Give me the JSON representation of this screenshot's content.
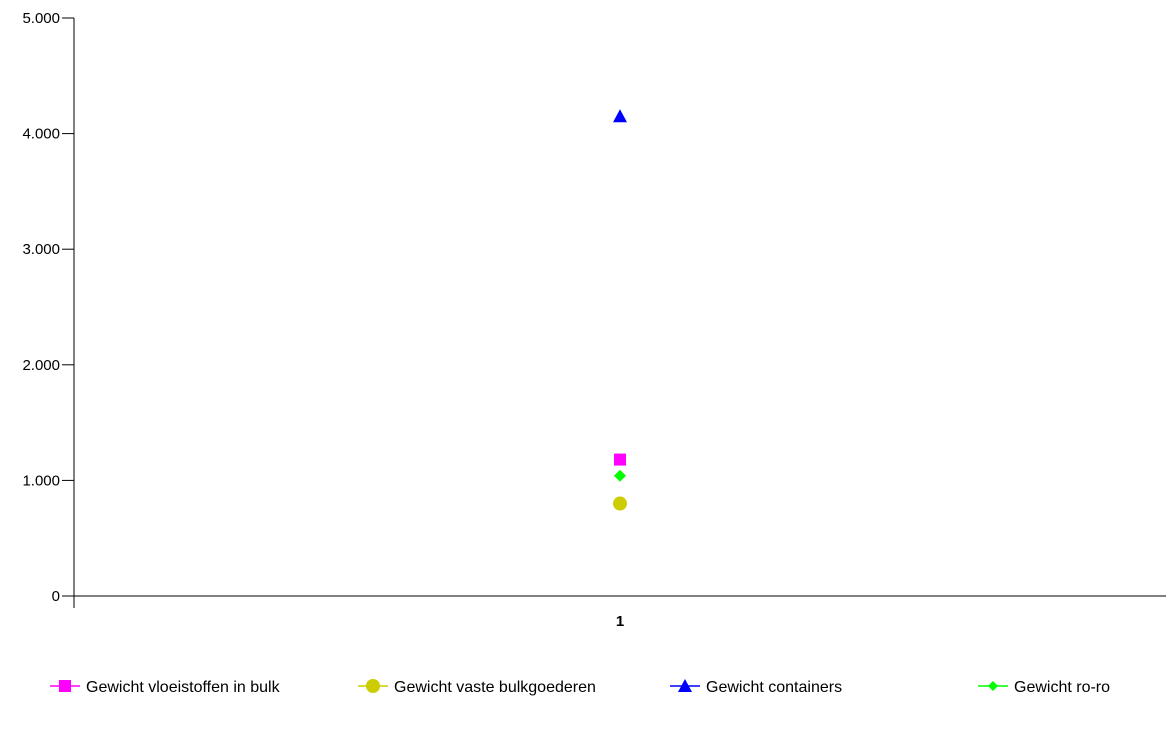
{
  "chart_data": {
    "type": "scatter",
    "categories": [
      "1"
    ],
    "ylim": [
      0,
      5000
    ],
    "yticks": [
      0,
      1000,
      2000,
      3000,
      4000,
      5000
    ],
    "ytick_labels": [
      "0",
      "1.000",
      "2.000",
      "3.000",
      "4.000",
      "5.000"
    ],
    "grid": false,
    "legend_position": "bottom",
    "series": [
      {
        "name": "Gewicht vloeistoffen in bulk",
        "values": [
          1180
        ],
        "color": "#ff00ff",
        "marker": "square"
      },
      {
        "name": "Gewicht vaste bulkgoederen",
        "values": [
          800
        ],
        "color": "#cccc00",
        "marker": "circle"
      },
      {
        "name": "Gewicht containers",
        "values": [
          4150
        ],
        "color": "#0000ff",
        "marker": "triangle"
      },
      {
        "name": "Gewicht ro-ro",
        "values": [
          1040
        ],
        "color": "#00ff00",
        "marker": "diamond"
      }
    ]
  }
}
